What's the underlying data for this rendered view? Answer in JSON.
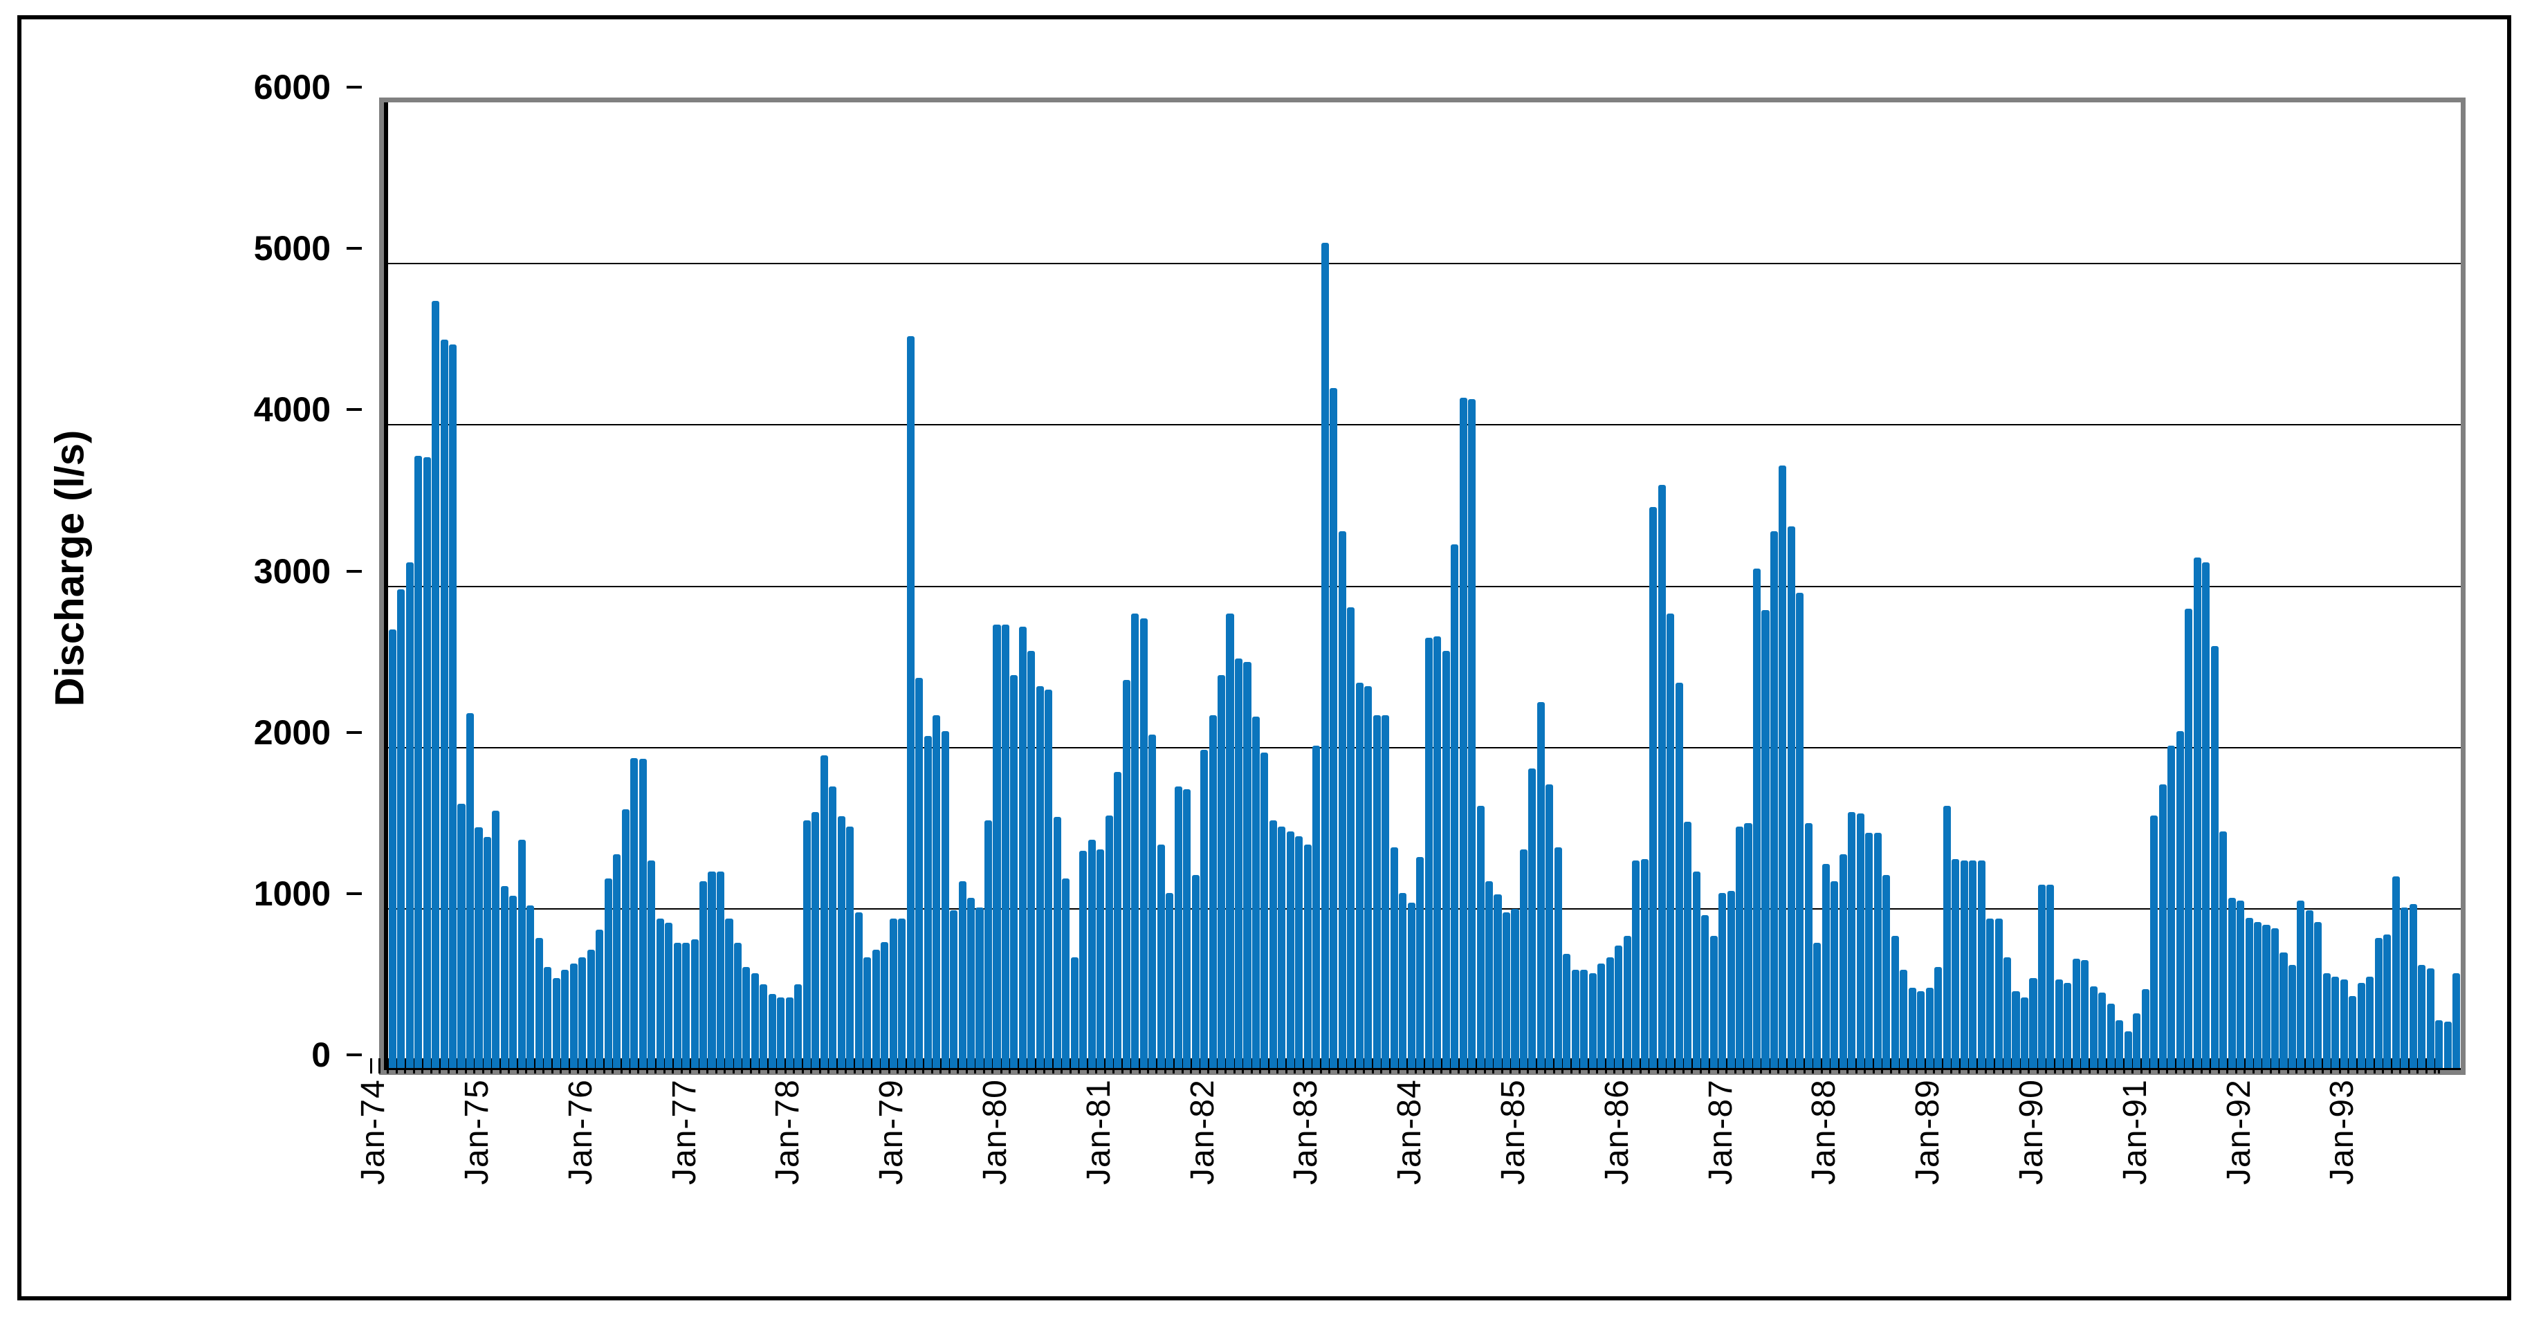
{
  "figure": {
    "background_color": "#ffffff",
    "frame_color": "#000000",
    "plot_border_color": "#808080",
    "gridline_color": "#000000"
  },
  "chart_data": {
    "type": "bar",
    "title": "",
    "xlabel": "",
    "ylabel": "Discharge (l/s)",
    "ylim": [
      0,
      6000
    ],
    "yticks": [
      0,
      1000,
      2000,
      3000,
      4000,
      5000,
      6000
    ],
    "ytick_labels": [
      "0",
      "1000",
      "2000",
      "3000",
      "4000",
      "5000",
      "6000"
    ],
    "grid": true,
    "legend": false,
    "bar_color": "#0B75BD",
    "x_unit": "month",
    "x_range_start": "Jan-74",
    "x_range_end": "Dec-93",
    "x_visible_tick_labels": [
      "Jan-74",
      "Jan-75",
      "Jan-76",
      "Jan-77",
      "Jan-78",
      "Jan-79",
      "Jan-80",
      "Jan-81",
      "Jan-82",
      "Jan-83",
      "Jan-84",
      "Jan-85",
      "Jan-86",
      "Jan-87",
      "Jan-88",
      "Jan-89",
      "Jan-90",
      "Jan-91",
      "Jan-92",
      "Jan-93"
    ],
    "year_order": [
      "1974",
      "1975",
      "1976",
      "1977",
      "1978",
      "1979",
      "1980",
      "1981",
      "1982",
      "1983",
      "1984",
      "1985",
      "1986",
      "1987",
      "1988",
      "1989",
      "1990",
      "1991",
      "1992",
      "1993"
    ],
    "monthly_values": {
      "1974": [
        2730,
        2980,
        3150,
        3810,
        3800,
        4770,
        4530,
        4500,
        1650,
        2215,
        1505,
        1445
      ],
      "1975": [
        1610,
        1140,
        1080,
        1430,
        1020,
        820,
        640,
        570,
        620,
        660,
        700,
        745
      ],
      "1976": [
        870,
        1190,
        1340,
        1615,
        1935,
        1930,
        1300,
        940,
        915,
        790,
        790,
        810
      ],
      "1977": [
        1170,
        1230,
        1230,
        940,
        790,
        640,
        600,
        530,
        470,
        450,
        450,
        530
      ],
      "1978": [
        1550,
        1600,
        1950,
        1760,
        1575,
        1510,
        980,
        700,
        745,
        795,
        940,
        940
      ],
      "1979": [
        4550,
        2430,
        2070,
        2200,
        2100,
        990,
        1170,
        1070,
        1010,
        1550,
        2760,
        2760
      ],
      "1980": [
        2450,
        2750,
        2600,
        2380,
        2360,
        1570,
        1190,
        700,
        1360,
        1430,
        1370,
        1580
      ],
      "1981": [
        1850,
        2420,
        2830,
        2800,
        2080,
        1400,
        1100,
        1760,
        1740,
        1210,
        1985,
        2200
      ],
      "1982": [
        2450,
        2830,
        2550,
        2530,
        2190,
        1970,
        1550,
        1510,
        1480,
        1450,
        1400,
        2010
      ],
      "1983": [
        5130,
        4230,
        3340,
        2870,
        2400,
        2380,
        2200,
        2200,
        1380,
        1100,
        1040,
        1320
      ],
      "1984": [
        2680,
        2690,
        2600,
        3260,
        4170,
        4160,
        1640,
        1170,
        1090,
        980,
        1000,
        1370
      ],
      "1985": [
        1870,
        2280,
        1770,
        1380,
        720,
        620,
        620,
        600,
        660,
        700,
        770,
        830
      ],
      "1986": [
        1300,
        1310,
        3490,
        3630,
        2830,
        2400,
        1540,
        1230,
        960,
        830,
        1100,
        1110
      ],
      "1987": [
        1510,
        1530,
        3110,
        2850,
        3340,
        3750,
        3370,
        2960,
        1530,
        790,
        1280,
        1170
      ],
      "1988": [
        1340,
        1600,
        1590,
        1470,
        1470,
        1210,
        830,
        620,
        510,
        490,
        510,
        640
      ],
      "1989": [
        1640,
        1310,
        1300,
        1300,
        1300,
        940,
        940,
        700,
        490,
        450,
        570,
        1150
      ],
      "1990": [
        1150,
        560,
        540,
        690,
        680,
        520,
        480,
        410,
        310,
        240,
        350,
        500
      ],
      "1991": [
        1580,
        1770,
        2010,
        2100,
        2860,
        3180,
        3150,
        2630,
        1480,
        1070,
        1050,
        945
      ],
      "1992": [
        920,
        900,
        880,
        730,
        650,
        1050,
        990,
        920,
        600,
        580,
        560,
        460
      ],
      "1993": [
        540,
        580,
        820,
        840,
        1200,
        1010,
        1030,
        650,
        630,
        310,
        300,
        600
      ]
    }
  }
}
